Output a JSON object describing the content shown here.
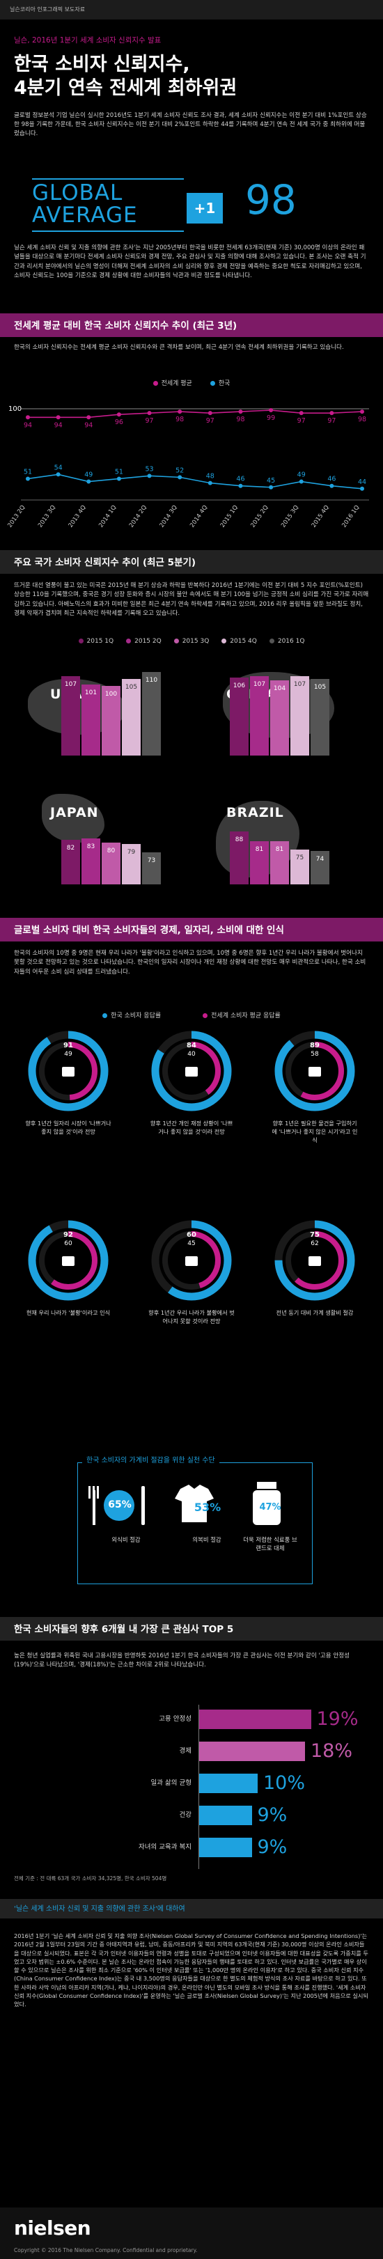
{
  "top_bar": "닐슨코리아 인포그래픽 보도자료",
  "hero": {
    "kicker": "닐슨, 2016년 1분기 세계 소비자 신뢰지수 발표",
    "title_line1": "한국 소비자 신뢰지수,",
    "title_line2": "4분기 연속 전세계 최하위권",
    "lead": "글로벌 정보분석 기업 닐슨이 실시한 2016년도 1분기 세계 소비자 신뢰도 조사 결과, 세계 소비자 신뢰지수는 이전 분기 대비 1%포인트 상승한 98을 기록한 가운데, 한국 소비자 신뢰지수는 이전 분기 대비 2%포인트 하락한 44를 기록하며 4분기 연속 전 세계 국가 중 최하위에 머물렀습니다."
  },
  "badge": {
    "line1": "GLOBAL",
    "line2": "AVERAGE",
    "change": "+1",
    "value": "98"
  },
  "intro_para": "닐슨 세계 소비자 신뢰 및 지출 의향에 관한 조사'는 지난 2005년부터 한국을 비롯한 전세계 63개국(현재 기준) 30,000명 이상의 온라인 패널들을 대상으로 매 분기마다 전세계 소비자 신뢰도와 경제 전망, 주요 관심사 및 지출 의향에 대해 조사하고 있습니다. 본 조사는 오랜 축적 기간과 리서치 분야에서의 닐슨의 명성이 더해져 전세계 소비자의 소비 심리와 향후 경제 전망을 예측하는 중요한 척도로 자리매김하고 있으며, 소비자 신뢰도는 100을 기준으로 경제 상황에 대한 소비자들의 낙관과 비관 정도를 나타냅니다.",
  "section1": {
    "title": "전세계 평균 대비 한국 소비자 신뢰지수 추이 (최근 3년)",
    "para": "한국의 소비자 신뢰지수는 전세계 평균 소비자 신뢰지수와 큰 격차를 보이며, 최근 4분기 연속 전세계 최하위권을 기록하고 있습니다.",
    "legend_global": "전세계 평균",
    "legend_korea": "한국"
  },
  "section2": {
    "title": "주요 국가 소비자 신뢰지수 추이 (최근 5분기)",
    "para": "뜨거운 대선 열풍이 불고 있는 미국은 2015년 매 분기 상승과 하락을 반복하다 2016년 1분기에는 이전 분기 대비 5 지수 포인트(%포인트) 상승한 110을 기록했으며, 중국은 경기 성장 둔화와 증시 시장의 불안 속에서도 매 분기 100을 넘기는 긍정적 소비 심리를 가진 국가로 자리매김하고 있습니다. 아베노믹스의 효과가 미비한 일본은 최근 4분기 연속 하락세를 기록하고 있으며, 2016 리우 올림픽을 앞둔 브라질도 정치, 경제 악재가 겹치며 최근 지속적인 하락세를 기록해 오고 있습니다.",
    "legend": [
      "2015 1Q",
      "2015 2Q",
      "2015 3Q",
      "2015 4Q",
      "2016 1Q"
    ]
  },
  "section3": {
    "title": "글로벌 소비자 대비 한국 소비자들의 경제, 일자리, 소비에 대한 인식",
    "para": "한국의 소비자의 10명 중 9명은 현재 우리 나라가 '불황'이라고 인식하고 있으며, 10명 중 6명은 향후 1년간 우리 나라가 불황에서 벗어나지 못할 것으로 전망하고 있는 것으로 나타났습니다. 한국인의 일자리 시장이나 개인 재정 상황에 대한 전망도 매우 비관적으로 나타나, 한국 소비자들의 어두운 소비 심리 상태를 드러냈습니다.",
    "legend_korea": "한국 소비자 응답률",
    "legend_global": "전세계 소비자 평균 응답률",
    "callout_title": "한국 소비자의 가계비 절감을 위한 실천 수단",
    "savings": [
      {
        "value": "65%",
        "label": "외식비 절감"
      },
      {
        "value": "53%",
        "label": "의복비 절감"
      },
      {
        "value": "47%",
        "label": "더욱 저렴한 식료품 브랜드로 대체"
      }
    ]
  },
  "section4": {
    "title": "한국 소비자들의 향후 6개월 내 가장 큰 관심사  TOP 5",
    "para": "높은 청년 실업률과 위축된 국내 고용시장을 반영하듯 2016년 1분기 한국 소비자들의 가장 큰 관심사는 이전 분기와 같이 '고용 안정성(19%)'으로 나타났으며, '경제(18%)'는 근소한 차이로 2위로 나타났습니다.",
    "note": "전체 기준 : 전 대륙 63개 국가 소비자 34,325명, 한국 소비자 504명"
  },
  "section5": {
    "title": "'닐슨 세계 소비자 신뢰 및 지출 의향에 관한 조사'에 대하여",
    "para": "2016년 1분기 '닐슨 세계 소비자 신뢰 및 지출 의향 조사(Nielsen Global Survey of Consumer Confidence and Spending Intentions)'는 2016년 2월 1일부터 23일의 기간 중 아태지역과 유럽, 남미, 중동/아프리카 및 북미 지역의 63개국(현재 기준) 30,000명 이상의 온라인 소비자들을 대상으로 실시되었다. 표본은 각 국가 인터넷 이용자들의 연령과 성별을 토대로 구성되었으며 인터넷 이용자들에 대한 대표성을 갖도록 가중치를 두었고 오차 범위는 ±0.6% 수준이다. 본 닐슨 조사는 온라인 접속이 가능한 응답자들의 행태를 토대로 하고 있다. 인터넷 보급률은 국가별로 매우 상이할 수 있으므로 닐슨은 조사를 위한 최소 기준으로 '60% 이 인터넷 보급률' 또는 '1,000만 명의 온라인 이용자'로 하고 있다. 중국 소비자 신뢰 지수(China Consumer Confidence Index)는 중국 내 3,500명의 응답자들을 대상으로 한 별도의 체험적 방식의 조사 자료를 바탕으로 하고 있다. 또한 사하라 사막 이남의 아프리카 지역(가나, 케냐, 나이지리아)의 경우, 온라인만 아닌 별도의 모바일 조사 방식을 통해 조사를 진행했다. '세계 소비자 신뢰 지수(Global Consumer Confidence Index)'를 운영하는 '닐슨 글로벌 조사(Nielsen Global Survey)'는 지난 2005년에 처음으로 실시되었다."
  },
  "footer": {
    "logo": "nielsen",
    "copyright": "Copyright © 2016 The Nielsen Company. Confidential and proprietary."
  },
  "colors": {
    "magenta": "#c71c8c",
    "blue": "#1ea2df",
    "purple_dark": "#7d1a66"
  },
  "chart_data": [
    {
      "type": "line",
      "categories": [
        "2013 2Q",
        "2013 3Q",
        "2013 4Q",
        "2014 1Q",
        "2014 2Q",
        "2014 3Q",
        "2014 4Q",
        "2015 1Q",
        "2015 2Q",
        "2015 3Q",
        "2015 4Q",
        "2016 1Q"
      ],
      "series": [
        {
          "name": "전세계 평균",
          "values": [
            94,
            94,
            94,
            96,
            97,
            98,
            97,
            98,
            99,
            97,
            97,
            98
          ],
          "color": "#c71c8c"
        },
        {
          "name": "한국",
          "values": [
            51,
            54,
            49,
            51,
            53,
            52,
            48,
            46,
            45,
            49,
            46,
            44
          ],
          "color": "#1ea2df"
        }
      ],
      "reference_value": 100,
      "reference_label": "100",
      "grid": false
    },
    {
      "type": "bar",
      "legend": [
        "2015 1Q",
        "2015 2Q",
        "2015 3Q",
        "2015 4Q",
        "2016 1Q"
      ],
      "groups": [
        {
          "country": "USA",
          "values": [
            107,
            101,
            100,
            105,
            110
          ]
        },
        {
          "country": "CHINA",
          "values": [
            106,
            107,
            104,
            107,
            105
          ]
        },
        {
          "country": "JAPAN",
          "values": [
            82,
            83,
            80,
            79,
            73
          ]
        },
        {
          "country": "BRAZIL",
          "values": [
            88,
            81,
            81,
            75,
            74
          ]
        }
      ],
      "series_colors": [
        "#7d1a66",
        "#a62b8a",
        "#c05aa8",
        "#ddb9d6",
        "#555555"
      ]
    },
    {
      "type": "pie",
      "items": [
        {
          "korea": 91,
          "global": 49,
          "caption": "향후 1년간 일자리 시장이 '나쁘거나 좋지 않을 것'이라 전망",
          "icon": "briefcase-icon"
        },
        {
          "korea": 84,
          "global": 40,
          "caption": "향후 1년간 개인 재정 상황이 '나쁘거나 좋지 않을 것'이라 전망",
          "icon": "dollar-icon"
        },
        {
          "korea": 89,
          "global": 58,
          "caption": "향후 1년은 필요한 물건을 구입하기에 '나쁘거나 좋지 않은 시기'라고 인식",
          "icon": "cart-icon"
        },
        {
          "korea": 92,
          "global": 60,
          "caption": "현재 우리 나라가 '불황'이라고 인식",
          "icon": "chart-down-icon"
        },
        {
          "korea": 60,
          "global": 45,
          "caption": "향후 1년간 우리 나라가 불황에서 벗어나지 못할 것이라 전망",
          "icon": "arrow-down-icon"
        },
        {
          "korea": 75,
          "global": 62,
          "caption": "전년 동기 대비 가계 생활비 절감",
          "icon": "piggy-bank-icon"
        }
      ]
    },
    {
      "type": "bar",
      "orientation": "horizontal",
      "categories": [
        "고용 안정성",
        "경제",
        "일과 삶의 균형",
        "건강",
        "자녀의 교육과 복지"
      ],
      "values": [
        19,
        18,
        10,
        9,
        9
      ],
      "value_labels": [
        "19%",
        "18%",
        "10%",
        "9%",
        "9%"
      ],
      "colors": [
        "#a62b8a",
        "#c05aa8",
        "#1ea2df",
        "#1ea2df",
        "#1ea2df"
      ]
    }
  ]
}
